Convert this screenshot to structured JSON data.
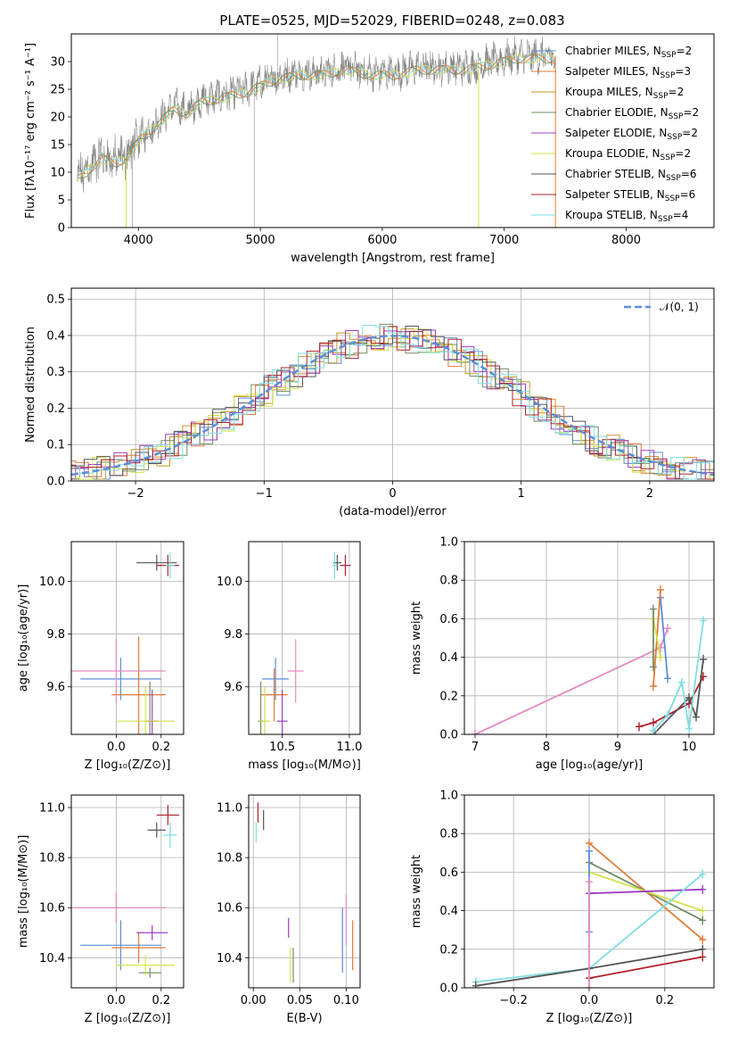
{
  "figure_title": "PLATE=0525, MJD=52029, FIBERID=0248, z=0.083",
  "colors": {
    "Chabrier MILES": "#5b8fd6",
    "Salpeter MILES": "#e07b39",
    "Kroupa MILES": "#c9962b",
    "Chabrier ELODIE": "#6f8f64",
    "Salpeter ELODIE": "#9b3fbf",
    "Kroupa ELODIE": "#d4e04a",
    "Chabrier STELIB": "#555555",
    "Salpeter STELIB": "#b0202a",
    "Kroupa STELIB": "#7fdde0",
    "gaussian": "#5b8fd6",
    "pink": "#e58bc0",
    "spectrum": "#888888"
  },
  "chart_data": [
    {
      "id": "spectrum",
      "type": "line",
      "xlabel": "wavelength [Angstrom, rest frame]",
      "ylabel": "Flux [fλ10⁻¹⁷ erg cm⁻² s⁻¹ A⁻¹]",
      "xlim": [
        3450,
        8720
      ],
      "ylim": [
        0,
        35
      ],
      "xticks": [
        4000,
        5000,
        6000,
        7000,
        8000
      ],
      "yticks": [
        0,
        5,
        10,
        15,
        20,
        25,
        30
      ],
      "continuum": [
        [
          3500,
          9
        ],
        [
          3600,
          11
        ],
        [
          3700,
          13
        ],
        [
          3800,
          12
        ],
        [
          3900,
          13
        ],
        [
          4000,
          16
        ],
        [
          4100,
          18
        ],
        [
          4200,
          20
        ],
        [
          4300,
          22
        ],
        [
          4400,
          21
        ],
        [
          4500,
          23
        ],
        [
          4700,
          24
        ],
        [
          4900,
          25
        ],
        [
          5100,
          27
        ],
        [
          5300,
          28
        ],
        [
          5500,
          28
        ],
        [
          5700,
          29
        ],
        [
          5900,
          28
        ],
        [
          6100,
          28
        ],
        [
          6300,
          29
        ],
        [
          6500,
          29
        ],
        [
          6700,
          29
        ],
        [
          6900,
          30
        ],
        [
          7100,
          31
        ],
        [
          7300,
          31
        ],
        [
          7420,
          31
        ]
      ],
      "legend": [
        {
          "label": "Chabrier MILES, N",
          "sub": "SSP",
          "suffix": "=2"
        },
        {
          "label": "Salpeter MILES, N",
          "sub": "SSP",
          "suffix": "=3"
        },
        {
          "label": "Kroupa MILES, N",
          "sub": "SSP",
          "suffix": "=2"
        },
        {
          "label": "Chabrier ELODIE, N",
          "sub": "SSP",
          "suffix": "=2"
        },
        {
          "label": "Salpeter ELODIE, N",
          "sub": "SSP",
          "suffix": "=2"
        },
        {
          "label": "Kroupa ELODIE, N",
          "sub": "SSP",
          "suffix": "=2"
        },
        {
          "label": "Chabrier STELIB, N",
          "sub": "SSP",
          "suffix": "=6"
        },
        {
          "label": "Salpeter STELIB, N",
          "sub": "SSP",
          "suffix": "=6"
        },
        {
          "label": "Kroupa STELIB, N",
          "sub": "SSP",
          "suffix": "=4"
        }
      ]
    },
    {
      "id": "residuals",
      "type": "histogram",
      "xlabel": "(data-model)/error",
      "ylabel": "Normed distribution",
      "xlim": [
        -2.5,
        2.5
      ],
      "ylim": [
        0,
        0.53
      ],
      "xticks": [
        -2,
        -1,
        0,
        1,
        2
      ],
      "yticks": [
        0.0,
        0.1,
        0.2,
        0.3,
        0.4,
        0.5
      ],
      "legend": "𝒩(0, 1)",
      "grid": true
    },
    {
      "id": "age_Z",
      "type": "errorbar",
      "xlabel": "Z [log₁₀(Z/Z⊙)]",
      "ylabel": "age  [log₁₀(age/yr)]",
      "xlim": [
        -0.2,
        0.3
      ],
      "ylim": [
        9.42,
        10.15
      ],
      "xticks": [
        0.0,
        0.2
      ],
      "yticks": [
        9.6,
        9.8,
        10.0
      ],
      "points": [
        {
          "s": "Chabrier MILES",
          "x": 0.02,
          "y": 9.63,
          "xe": 0.18,
          "ye": 0.08
        },
        {
          "s": "Salpeter MILES",
          "x": 0.1,
          "y": 9.57,
          "xe": 0.12,
          "ye": 0.22
        },
        {
          "s": "Chabrier ELODIE",
          "x": 0.15,
          "y": 9.47,
          "xe": 0.02,
          "ye": 0.15
        },
        {
          "s": "Salpeter ELODIE",
          "x": 0.16,
          "y": 9.47,
          "xe": 0.03,
          "ye": 0.12
        },
        {
          "s": "Kroupa ELODIE",
          "x": 0.13,
          "y": 9.47,
          "xe": 0.13,
          "ye": 0.13
        },
        {
          "s": "pink",
          "x": 0.0,
          "y": 9.66,
          "xe": 0.22,
          "ye": 0.12
        },
        {
          "s": "Chabrier STELIB",
          "x": 0.18,
          "y": 10.07,
          "xe": 0.09,
          "ye": 0.03
        },
        {
          "s": "Salpeter STELIB",
          "x": 0.23,
          "y": 10.06,
          "xe": 0.05,
          "ye": 0.04
        },
        {
          "s": "Kroupa STELIB",
          "x": 0.24,
          "y": 10.06,
          "xe": 0.02,
          "ye": 0.05
        }
      ]
    },
    {
      "id": "age_mass",
      "type": "errorbar",
      "xlabel": "mass [log₁₀(M/M⊙)]",
      "ylabel": "",
      "xlim": [
        10.25,
        11.08
      ],
      "ylim": [
        9.42,
        10.15
      ],
      "xticks": [
        10.5,
        11.0
      ],
      "yticks": [
        9.6,
        9.8,
        10.0
      ],
      "points": [
        {
          "s": "Chabrier MILES",
          "x": 10.45,
          "y": 9.63,
          "xe": 0.1,
          "ye": 0.08
        },
        {
          "s": "Salpeter MILES",
          "x": 10.44,
          "y": 9.57,
          "xe": 0.1,
          "ye": 0.1
        },
        {
          "s": "Chabrier ELODIE",
          "x": 10.34,
          "y": 9.47,
          "xe": 0.02,
          "ye": 0.15
        },
        {
          "s": "Salpeter ELODIE",
          "x": 10.5,
          "y": 9.47,
          "xe": 0.04,
          "ye": 0.12
        },
        {
          "s": "Kroupa ELODIE",
          "x": 10.37,
          "y": 9.47,
          "xe": 0.04,
          "ye": 0.13
        },
        {
          "s": "pink",
          "x": 10.6,
          "y": 9.66,
          "xe": 0.06,
          "ye": 0.12
        },
        {
          "s": "Chabrier STELIB",
          "x": 10.91,
          "y": 10.07,
          "xe": 0.03,
          "ye": 0.03
        },
        {
          "s": "Salpeter STELIB",
          "x": 10.97,
          "y": 10.06,
          "xe": 0.04,
          "ye": 0.04
        },
        {
          "s": "Kroupa STELIB",
          "x": 10.89,
          "y": 10.06,
          "xe": 0.02,
          "ye": 0.05
        }
      ]
    },
    {
      "id": "weight_age",
      "type": "line",
      "xlabel": "age  [log₁₀(age/yr)]",
      "ylabel": "mass weight",
      "xlim": [
        6.85,
        10.35
      ],
      "ylim": [
        0,
        1
      ],
      "xticks": [
        7,
        8,
        9,
        10
      ],
      "yticks": [
        0.0,
        0.2,
        0.4,
        0.6,
        0.8,
        1.0
      ],
      "series": [
        {
          "s": "pink",
          "pts": [
            [
              7.0,
              0.0
            ],
            [
              9.6,
              0.45
            ],
            [
              9.7,
              0.55
            ]
          ]
        },
        {
          "s": "Chabrier MILES",
          "pts": [
            [
              9.6,
              0.71
            ],
            [
              9.7,
              0.29
            ]
          ]
        },
        {
          "s": "Salpeter MILES",
          "pts": [
            [
              9.5,
              0.25
            ],
            [
              9.6,
              0.75
            ]
          ]
        },
        {
          "s": "Kroupa ELODIE",
          "pts": [
            [
              9.5,
              0.6
            ],
            [
              9.6,
              0.4
            ]
          ]
        },
        {
          "s": "Chabrier ELODIE",
          "pts": [
            [
              9.5,
              0.65
            ],
            [
              9.5,
              0.35
            ]
          ]
        },
        {
          "s": "Salpeter STELIB",
          "pts": [
            [
              9.3,
              0.04
            ],
            [
              9.5,
              0.06
            ],
            [
              10.0,
              0.16
            ],
            [
              10.2,
              0.3
            ]
          ]
        },
        {
          "s": "Chabrier STELIB",
          "pts": [
            [
              9.5,
              0.0
            ],
            [
              10.0,
              0.19
            ],
            [
              10.1,
              0.09
            ],
            [
              10.2,
              0.39
            ]
          ]
        },
        {
          "s": "Kroupa STELIB",
          "pts": [
            [
              9.5,
              0.02
            ],
            [
              9.7,
              0.1
            ],
            [
              9.9,
              0.27
            ],
            [
              10.0,
              0.03
            ],
            [
              10.2,
              0.59
            ]
          ]
        }
      ]
    },
    {
      "id": "mass_Z",
      "type": "errorbar",
      "xlabel": "Z [log₁₀(Z/Z⊙)]",
      "ylabel": "mass [log₁₀(M/M⊙)]",
      "xlim": [
        -0.2,
        0.3
      ],
      "ylim": [
        10.28,
        11.05
      ],
      "xticks": [
        0.0,
        0.2
      ],
      "yticks": [
        10.4,
        10.6,
        10.8,
        11.0
      ],
      "points": [
        {
          "s": "Chabrier MILES",
          "x": 0.02,
          "y": 10.45,
          "xe": 0.18,
          "ye": 0.1
        },
        {
          "s": "Salpeter MILES",
          "x": 0.1,
          "y": 10.44,
          "xe": 0.12,
          "ye": 0.06
        },
        {
          "s": "Chabrier ELODIE",
          "x": 0.15,
          "y": 10.34,
          "xe": 0.05,
          "ye": 0.02
        },
        {
          "s": "Salpeter ELODIE",
          "x": 0.16,
          "y": 10.5,
          "xe": 0.07,
          "ye": 0.03
        },
        {
          "s": "Kroupa ELODIE",
          "x": 0.13,
          "y": 10.37,
          "xe": 0.13,
          "ye": 0.04
        },
        {
          "s": "pink",
          "x": 0.0,
          "y": 10.6,
          "xe": 0.22,
          "ye": 0.06
        },
        {
          "s": "Chabrier STELIB",
          "x": 0.18,
          "y": 10.91,
          "xe": 0.04,
          "ye": 0.03
        },
        {
          "s": "Salpeter STELIB",
          "x": 0.23,
          "y": 10.97,
          "xe": 0.05,
          "ye": 0.04
        },
        {
          "s": "Kroupa STELIB",
          "x": 0.24,
          "y": 10.89,
          "xe": 0.03,
          "ye": 0.05
        }
      ]
    },
    {
      "id": "mass_EBV",
      "type": "errorbar",
      "xlabel": "E(B-V)",
      "ylabel": "",
      "xlim": [
        -0.005,
        0.115
      ],
      "ylim": [
        10.28,
        11.05
      ],
      "xticks": [
        0.0,
        0.05,
        0.1
      ],
      "yticks": [
        10.4,
        10.6,
        10.8,
        11.0
      ],
      "points": [
        {
          "s": "Chabrier MILES",
          "x": 0.096,
          "y": 10.47,
          "xe": 0,
          "ye": 0.13
        },
        {
          "s": "Salpeter MILES",
          "x": 0.107,
          "y": 10.45,
          "xe": 0,
          "ye": 0.1
        },
        {
          "s": "pink",
          "x": 0.1,
          "y": 10.55,
          "xe": 0,
          "ye": 0.1
        },
        {
          "s": "Chabrier ELODIE",
          "x": 0.043,
          "y": 10.37,
          "xe": 0,
          "ye": 0.07
        },
        {
          "s": "Kroupa ELODIE",
          "x": 0.04,
          "y": 10.37,
          "xe": 0,
          "ye": 0.07
        },
        {
          "s": "Salpeter ELODIE",
          "x": 0.038,
          "y": 10.52,
          "xe": 0,
          "ye": 0.04
        },
        {
          "s": "Chabrier STELIB",
          "x": 0.011,
          "y": 10.95,
          "xe": 0,
          "ye": 0.04
        },
        {
          "s": "Salpeter STELIB",
          "x": 0.005,
          "y": 10.98,
          "xe": 0,
          "ye": 0.04
        },
        {
          "s": "Kroupa STELIB",
          "x": 0.003,
          "y": 10.9,
          "xe": 0,
          "ye": 0.04
        }
      ]
    },
    {
      "id": "weight_Z",
      "type": "line",
      "xlabel": "Z [log₁₀(Z/Z⊙)]",
      "ylabel": "mass weight",
      "xlim": [
        -0.33,
        0.33
      ],
      "ylim": [
        0,
        1
      ],
      "xticks": [
        -0.2,
        0.0,
        0.2
      ],
      "yticks": [
        0.0,
        0.2,
        0.4,
        0.6,
        0.8,
        1.0
      ],
      "series": [
        {
          "s": "Salpeter MILES",
          "pts": [
            [
              0.0,
              0.75
            ],
            [
              0.3,
              0.25
            ]
          ]
        },
        {
          "s": "Chabrier ELODIE",
          "pts": [
            [
              0.0,
              0.65
            ],
            [
              0.3,
              0.35
            ]
          ]
        },
        {
          "s": "Kroupa ELODIE",
          "pts": [
            [
              0.0,
              0.6
            ],
            [
              0.3,
              0.4
            ]
          ]
        },
        {
          "s": "Salpeter ELODIE",
          "pts": [
            [
              0.0,
              0.49
            ],
            [
              0.3,
              0.51
            ]
          ]
        },
        {
          "s": "Kroupa STELIB",
          "pts": [
            [
              -0.3,
              0.03
            ],
            [
              0.0,
              0.1
            ],
            [
              0.3,
              0.59
            ]
          ]
        },
        {
          "s": "Chabrier STELIB",
          "pts": [
            [
              -0.3,
              0.01
            ],
            [
              0.0,
              0.1
            ],
            [
              0.3,
              0.2
            ]
          ]
        },
        {
          "s": "Salpeter STELIB",
          "pts": [
            [
              0.0,
              0.05
            ],
            [
              0.3,
              0.16
            ]
          ]
        },
        {
          "s": "Chabrier MILES",
          "pts": [
            [
              0.0,
              0.71
            ],
            [
              0.0,
              0.29
            ]
          ]
        },
        {
          "s": "pink",
          "pts": [
            [
              0.0,
              0.55
            ],
            [
              0.0,
              0.0
            ]
          ]
        }
      ]
    }
  ]
}
